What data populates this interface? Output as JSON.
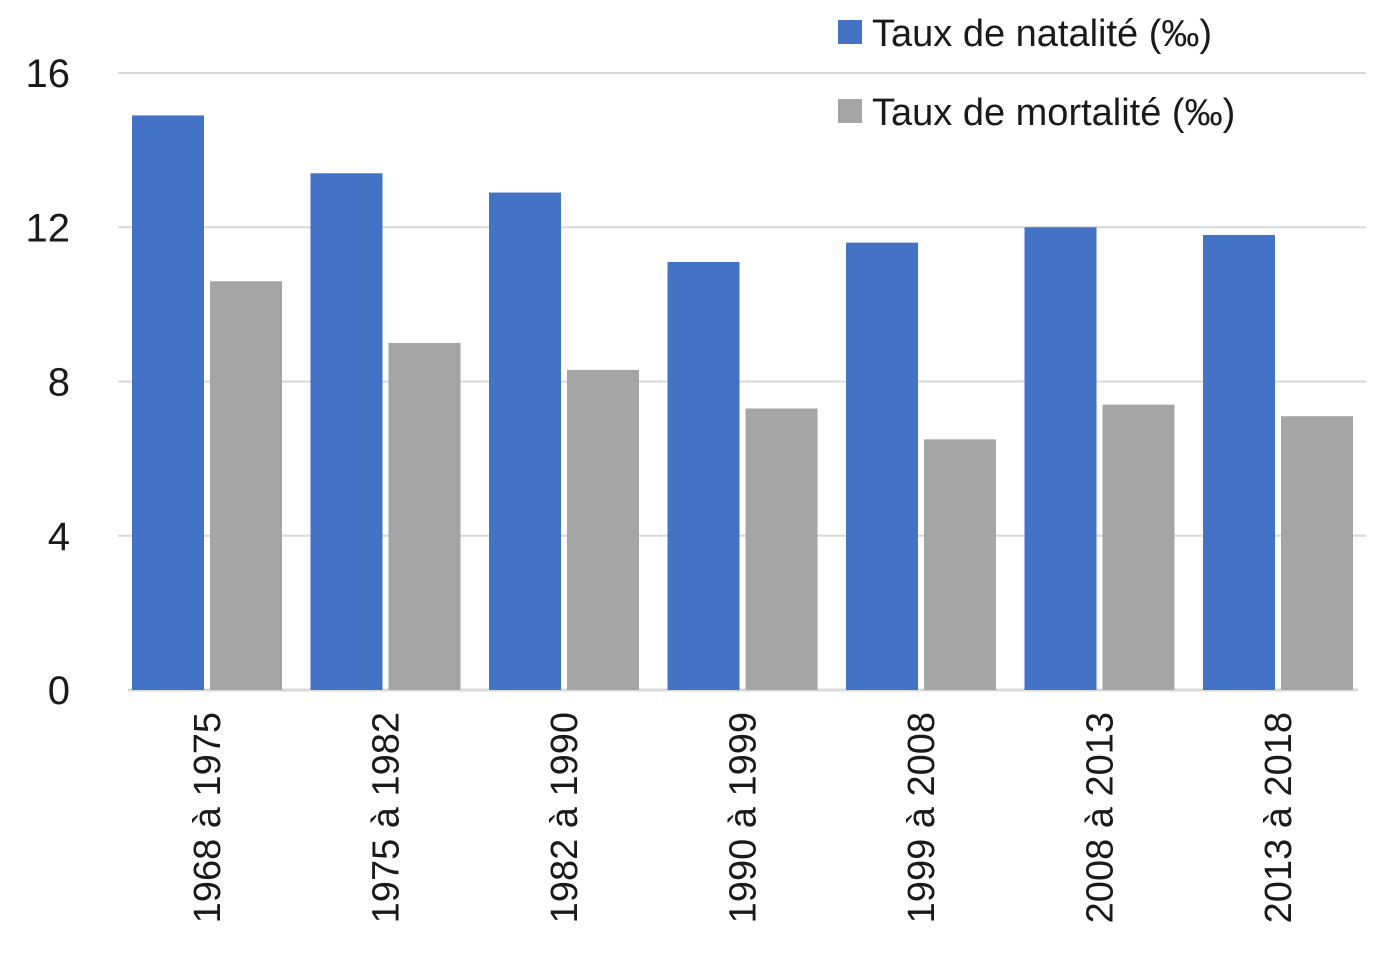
{
  "chart_data": {
    "type": "bar",
    "title": "",
    "xlabel": "",
    "ylabel": "",
    "categories": [
      "1968 à 1975",
      "1975 à 1982",
      "1982 à 1990",
      "1990 à 1999",
      "1999 à 2008",
      "2008 à 2013",
      "2013 à 2018"
    ],
    "series": [
      {
        "name": "Taux de natalité (‰)",
        "color": "#4472c4",
        "values": [
          14.9,
          13.4,
          12.9,
          11.1,
          11.6,
          12.0,
          11.8
        ]
      },
      {
        "name": "Taux de mortalité (‰)",
        "color": "#a5a5a5",
        "values": [
          10.6,
          9.0,
          8.3,
          7.3,
          6.5,
          7.4,
          7.1
        ]
      }
    ],
    "yticks": [
      0,
      4,
      8,
      12,
      16
    ],
    "ylim": [
      0,
      16
    ],
    "grid": true,
    "legend_position": "top-right"
  }
}
